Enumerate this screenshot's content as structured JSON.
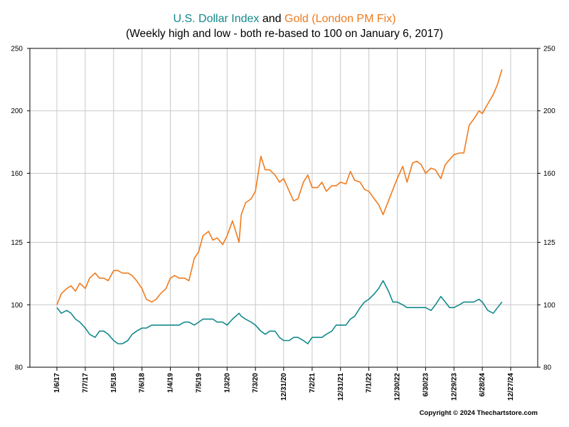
{
  "title": {
    "series1_name": "U.S. Dollar Index",
    "conjunction": "and",
    "series2_name": "Gold (London PM Fix)",
    "subtitle": "(Weekly high and low - both re-based to 100 on January 6, 2017)"
  },
  "copyright": "Copyright © 2024 Thechartstore.com",
  "chart_data": {
    "type": "line",
    "scale": "log",
    "ylim": [
      80,
      250
    ],
    "yticks": [
      80,
      100,
      125,
      160,
      200,
      250
    ],
    "xticks": [
      "1/6/17",
      "7/7/17",
      "1/5/18",
      "7/6/18",
      "1/4/19",
      "7/5/19",
      "1/3/20",
      "7/3/20",
      "12/31/20",
      "7/2/21",
      "12/31/21",
      "7/1/22",
      "12/30/22",
      "6/30/23",
      "12/29/23",
      "6/28/24",
      "12/27/24"
    ],
    "grid": true,
    "colors": {
      "dollar": "#14898c",
      "gold": "#ef7b1e"
    },
    "series": [
      {
        "name": "U.S. Dollar Index",
        "color": "#14898c",
        "x": [
          "1/6/17",
          "2/3/17",
          "3/10/17",
          "4/7/17",
          "5/5/17",
          "6/2/17",
          "7/7/17",
          "8/4/17",
          "9/8/17",
          "10/6/17",
          "11/3/17",
          "12/1/17",
          "1/5/18",
          "2/2/18",
          "3/2/18",
          "4/6/18",
          "5/4/18",
          "6/1/18",
          "7/6/18",
          "8/3/18",
          "9/7/18",
          "10/5/18",
          "11/2/18",
          "12/7/18",
          "1/4/19",
          "2/1/19",
          "3/1/19",
          "4/5/19",
          "5/3/19",
          "6/7/19",
          "7/5/19",
          "8/2/19",
          "9/6/19",
          "10/4/19",
          "11/1/19",
          "12/6/19",
          "1/3/20",
          "2/7/20",
          "3/20/20",
          "4/3/20",
          "5/1/20",
          "6/5/20",
          "7/3/20",
          "8/7/20",
          "9/4/20",
          "10/2/20",
          "11/6/20",
          "12/4/20",
          "12/31/20",
          "2/5/21",
          "3/5/21",
          "4/2/21",
          "5/7/21",
          "6/4/21",
          "7/2/21",
          "8/6/21",
          "9/3/21",
          "10/1/21",
          "11/5/21",
          "12/3/21",
          "12/31/21",
          "2/4/22",
          "3/4/22",
          "4/1/22",
          "5/6/22",
          "6/3/22",
          "7/1/22",
          "8/5/22",
          "9/2/22",
          "9/30/22",
          "11/4/22",
          "12/2/22",
          "12/30/22",
          "2/3/23",
          "3/3/23",
          "4/7/23",
          "5/5/23",
          "6/2/23",
          "6/30/23",
          "8/4/23",
          "9/1/23",
          "10/6/23",
          "11/3/23",
          "12/1/23",
          "12/29/23",
          "2/2/24",
          "3/1/24",
          "4/5/24",
          "5/3/24",
          "6/7/24",
          "6/28/24",
          "8/2/24",
          "9/6/24",
          "10/4/24",
          "11/1/24"
        ],
        "values": [
          99,
          97,
          98,
          97,
          95,
          94,
          92,
          90,
          89,
          91,
          91,
          90,
          88,
          87,
          87,
          88,
          90,
          91,
          92,
          92,
          93,
          93,
          93,
          93,
          93,
          93,
          93,
          94,
          94,
          93,
          94,
          95,
          95,
          95,
          94,
          94,
          93,
          95,
          97,
          96,
          95,
          94,
          93,
          91,
          90,
          91,
          91,
          89,
          88,
          88,
          89,
          89,
          88,
          87,
          89,
          89,
          89,
          90,
          91,
          93,
          93,
          93,
          95,
          96,
          99,
          101,
          102,
          104,
          106,
          109,
          105,
          101,
          101,
          100,
          99,
          99,
          99,
          99,
          99,
          98,
          100,
          103,
          101,
          99,
          99,
          100,
          101,
          101,
          101,
          102,
          101,
          98,
          97,
          99,
          101
        ]
      },
      {
        "name": "Gold (London PM Fix)",
        "color": "#ef7b1e",
        "x": [
          "1/6/17",
          "2/3/17",
          "3/10/17",
          "4/7/17",
          "5/5/17",
          "6/2/17",
          "7/7/17",
          "8/4/17",
          "9/8/17",
          "10/6/17",
          "11/3/17",
          "12/1/17",
          "1/5/18",
          "2/2/18",
          "3/2/18",
          "4/6/18",
          "5/4/18",
          "6/1/18",
          "7/6/18",
          "8/3/18",
          "9/7/18",
          "10/5/18",
          "11/2/18",
          "12/7/18",
          "1/4/19",
          "2/1/19",
          "3/1/19",
          "4/5/19",
          "5/3/19",
          "6/7/19",
          "7/5/19",
          "8/2/19",
          "9/6/19",
          "10/4/19",
          "11/1/19",
          "12/6/19",
          "1/3/20",
          "2/7/20",
          "3/20/20",
          "4/3/20",
          "5/1/20",
          "6/5/20",
          "7/3/20",
          "8/7/20",
          "9/4/20",
          "10/2/20",
          "11/6/20",
          "12/4/20",
          "12/31/20",
          "2/5/21",
          "3/5/21",
          "4/2/21",
          "5/7/21",
          "6/4/21",
          "7/2/21",
          "8/6/21",
          "9/3/21",
          "10/1/21",
          "11/5/21",
          "12/3/21",
          "12/31/21",
          "2/4/22",
          "3/4/22",
          "4/1/22",
          "5/6/22",
          "6/3/22",
          "7/1/22",
          "8/5/22",
          "9/2/22",
          "9/30/22",
          "11/4/22",
          "12/2/22",
          "12/30/22",
          "2/3/23",
          "3/3/23",
          "4/7/23",
          "5/5/23",
          "6/2/23",
          "6/30/23",
          "8/4/23",
          "9/1/23",
          "10/6/23",
          "11/3/23",
          "12/1/23",
          "12/29/23",
          "2/2/24",
          "3/1/24",
          "4/5/24",
          "5/3/24",
          "6/7/24",
          "6/28/24",
          "8/2/24",
          "9/6/24",
          "10/4/24",
          "11/1/24"
        ],
        "values": [
          100,
          104,
          106,
          107,
          105,
          108,
          106,
          110,
          112,
          110,
          110,
          109,
          113,
          113,
          112,
          112,
          111,
          109,
          106,
          102,
          101,
          102,
          104,
          106,
          110,
          111,
          110,
          110,
          109,
          118,
          121,
          128,
          130,
          126,
          127,
          124,
          128,
          135,
          125,
          138,
          144,
          146,
          150,
          170,
          162,
          162,
          159,
          155,
          157,
          150,
          145,
          146,
          155,
          159,
          152,
          152,
          155,
          150,
          153,
          153,
          155,
          154,
          161,
          156,
          155,
          151,
          150,
          146,
          143,
          138,
          145,
          151,
          157,
          164,
          155,
          166,
          167,
          165,
          160,
          163,
          162,
          157,
          165,
          168,
          171,
          172,
          172,
          190,
          194,
          200,
          198,
          205,
          212,
          220,
          232
        ]
      }
    ]
  }
}
